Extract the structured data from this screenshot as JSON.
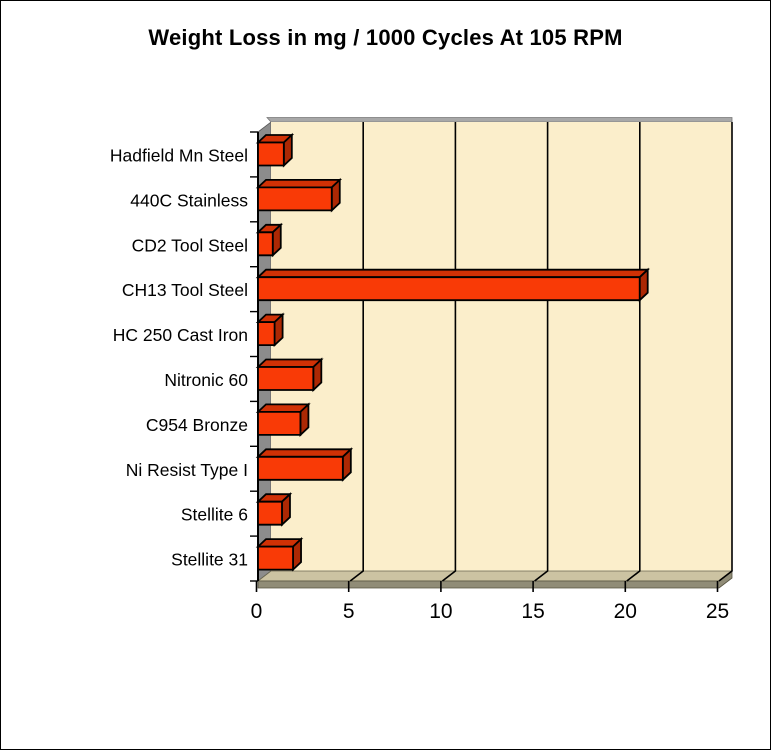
{
  "chart_data": {
    "type": "bar",
    "orientation": "horizontal",
    "style": "3d-excel",
    "title": "Weight Loss in mg / 1000 Cycles At 105 RPM",
    "categories": [
      "Hadfield Mn Steel",
      "440C Stainless",
      "CD2 Tool Steel",
      "CH13 Tool Steel",
      "HC 250 Cast Iron",
      "Nitronic 60",
      "C954 Bronze",
      "Ni Resist Type I",
      "Stellite 6",
      "Stellite 31"
    ],
    "values": [
      1.4,
      4.0,
      0.8,
      20.7,
      0.9,
      3.0,
      2.3,
      4.6,
      1.3,
      1.9
    ],
    "xlabel": "",
    "ylabel": "",
    "xlim": [
      0,
      25
    ],
    "x_ticks": [
      0,
      5,
      10,
      15,
      20,
      25
    ],
    "grid": true,
    "legend": "none",
    "colors": {
      "bar_front": "#f93a06",
      "bar_top": "#d03105",
      "bar_end": "#ac2804",
      "back_wall": "#fbeecb",
      "side_wall": "#8c8c8c",
      "wall_top_strip": "#a8a8a8",
      "floor_top": "#ccc3a2",
      "floor_front": "#908c77",
      "outline": "#000000",
      "text": "#000000",
      "background": "#ffffff"
    }
  }
}
